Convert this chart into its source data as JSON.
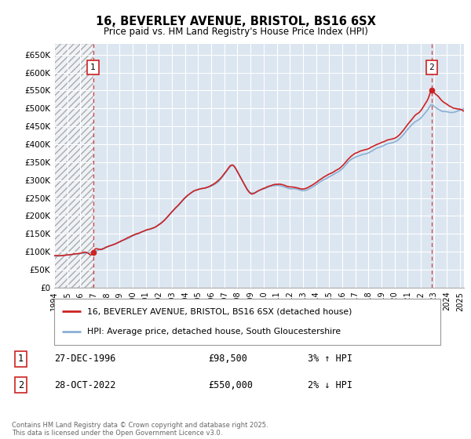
{
  "title_line1": "16, BEVERLEY AVENUE, BRISTOL, BS16 6SX",
  "title_line2": "Price paid vs. HM Land Registry's House Price Index (HPI)",
  "ylim": [
    0,
    680000
  ],
  "yticks": [
    0,
    50000,
    100000,
    150000,
    200000,
    250000,
    300000,
    350000,
    400000,
    450000,
    500000,
    550000,
    600000,
    650000
  ],
  "ytick_labels": [
    "£0",
    "£50K",
    "£100K",
    "£150K",
    "£200K",
    "£250K",
    "£300K",
    "£350K",
    "£400K",
    "£450K",
    "£500K",
    "£550K",
    "£600K",
    "£650K"
  ],
  "background_color": "#ffffff",
  "plot_bg_color": "#dce6f1",
  "grid_color": "#ffffff",
  "hpi_color": "#8ab0d4",
  "price_color": "#cc2222",
  "ann1_x": 1996.97,
  "ann1_y": 98500,
  "ann2_x": 2022.83,
  "ann2_y": 550000,
  "legend_line1": "16, BEVERLEY AVENUE, BRISTOL, BS16 6SX (detached house)",
  "legend_line2": "HPI: Average price, detached house, South Gloucestershire",
  "footer": "Contains HM Land Registry data © Crown copyright and database right 2025.\nThis data is licensed under the Open Government Licence v3.0.",
  "xmin": 1994.0,
  "xmax": 2025.3,
  "row1_date": "27-DEC-1996",
  "row1_price": "£98,500",
  "row1_hpi": "3% ↑ HPI",
  "row2_date": "28-OCT-2022",
  "row2_price": "£550,000",
  "row2_hpi": "2% ↓ HPI"
}
